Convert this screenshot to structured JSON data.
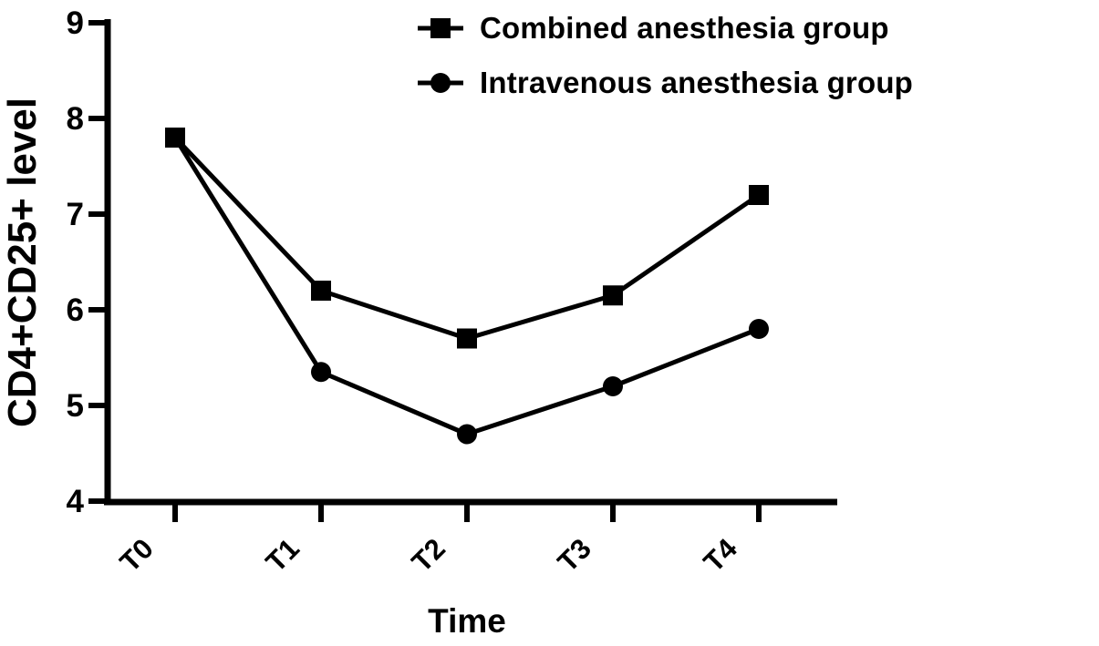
{
  "chart_data": {
    "type": "line",
    "title": "",
    "categories": [
      "T0",
      "T1",
      "T2",
      "T3",
      "T4"
    ],
    "series": [
      {
        "name": "Combined anesthesia group",
        "marker": "square",
        "values": [
          7.8,
          6.2,
          5.7,
          6.15,
          7.2
        ]
      },
      {
        "name": "Intravenous anesthesia group",
        "marker": "circle",
        "values": [
          7.8,
          5.35,
          4.7,
          5.2,
          5.8
        ]
      }
    ],
    "xlabel": "Time",
    "ylabel": "CD4+CD25+ level",
    "ylim": [
      4,
      9
    ],
    "yticks": [
      9,
      8,
      7,
      6,
      5,
      4
    ],
    "x_tick_rotation": -45,
    "legend_position": "top-right",
    "grid": false,
    "series_color": "#000000",
    "axis_color": "#000000",
    "background": "#ffffff"
  }
}
